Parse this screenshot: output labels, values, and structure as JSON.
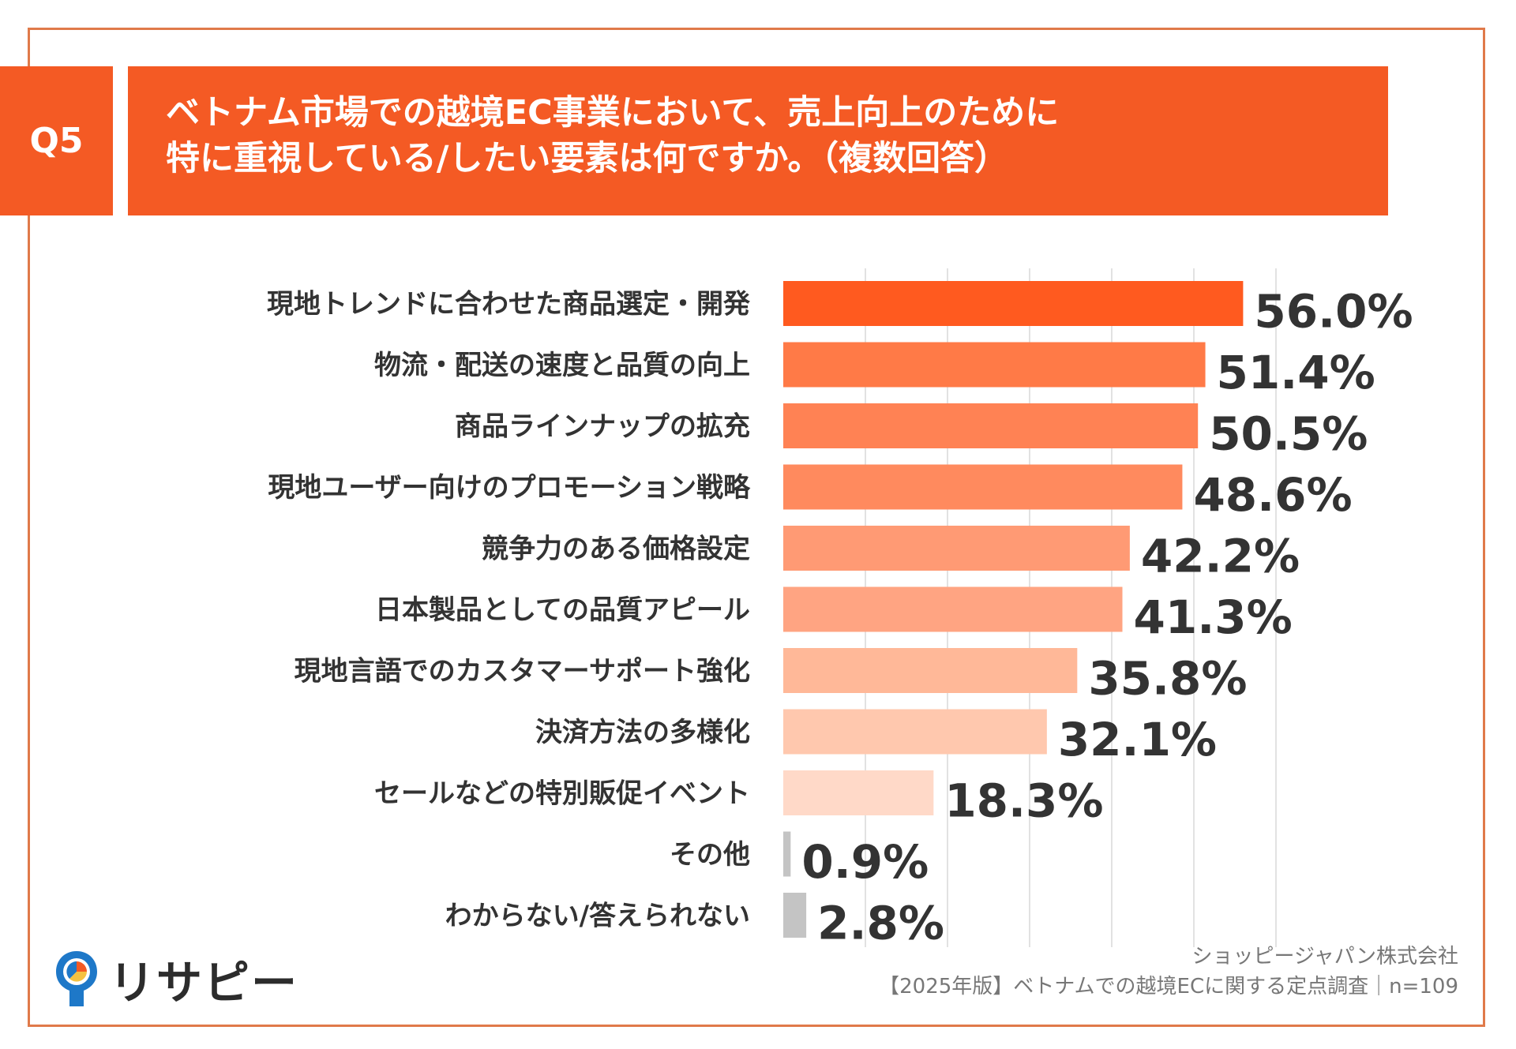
{
  "question": {
    "badge": "Q5",
    "title_line1": "ベトナム市場での越境EC事業において、売上向上のために",
    "title_line2": "特に重視している/したい要素は何ですか。（複数回答）"
  },
  "chart_data": {
    "type": "bar",
    "orientation": "horizontal",
    "categories": [
      "現地トレンドに合わせた商品選定・開発",
      "物流・配送の速度と品質の向上",
      "商品ラインナップの拡充",
      "現地ユーザー向けのプロモーション戦略",
      "競争力のある価格設定",
      "日本製品としての品質アピール",
      "現地言語でのカスタマーサポート強化",
      "決済方法の多様化",
      "セールなどの特別販促イベント",
      "その他",
      "わからない/答えられない"
    ],
    "values": [
      56.0,
      51.4,
      50.5,
      48.6,
      42.2,
      41.3,
      35.8,
      32.1,
      18.3,
      0.9,
      2.8
    ],
    "value_labels": [
      "56.0%",
      "51.4%",
      "50.5%",
      "48.6%",
      "42.2%",
      "41.3%",
      "35.8%",
      "32.1%",
      "18.3%",
      "0.9%",
      "2.8%"
    ],
    "colors": [
      "#FF5A1F",
      "#FF7A47",
      "#FF8254",
      "#FF8A5E",
      "#FF9A74",
      "#FFA482",
      "#FFB898",
      "#FFC8AE",
      "#FFD9C8",
      "#C4C4C4",
      "#C4C4C4"
    ],
    "xlim": [
      0,
      60
    ],
    "grid": true
  },
  "source": {
    "company": "ショッピージャパン株式会社",
    "survey": "【2025年版】ベトナムでの越境ECに関する定点調査｜n=109"
  },
  "logo": {
    "text": "リサピー",
    "icon": "map-pin-pie-icon"
  }
}
